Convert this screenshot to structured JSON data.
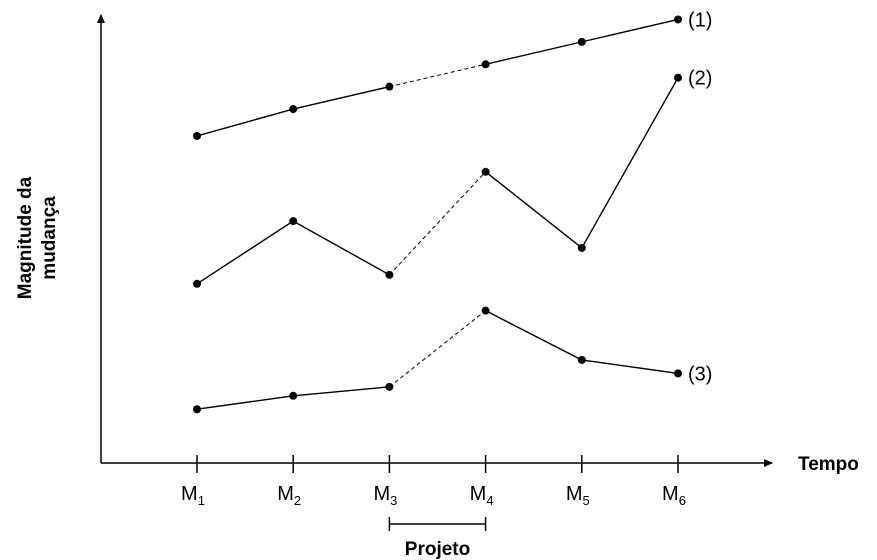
{
  "chart_data": {
    "type": "line",
    "xlabel": "Tempo",
    "ylabel_lines": [
      "Magnitude da",
      "mudança"
    ],
    "x_categories": [
      {
        "main": "M",
        "sub": "1"
      },
      {
        "main": "M",
        "sub": "2"
      },
      {
        "main": "M",
        "sub": "3"
      },
      {
        "main": "M",
        "sub": "4"
      },
      {
        "main": "M",
        "sub": "5"
      },
      {
        "main": "M",
        "sub": "6"
      }
    ],
    "ylim": [
      0,
      100
    ],
    "grid": false,
    "bracket": {
      "label": "Projeto",
      "from_index": 2,
      "to_index": 3
    },
    "dashed_segment": {
      "from_index": 2,
      "to_index": 3
    },
    "series": [
      {
        "name": "(1)",
        "values": [
          73,
          79,
          84,
          89,
          94,
          99
        ]
      },
      {
        "name": "(2)",
        "values": [
          40,
          54,
          42,
          65,
          48,
          86
        ]
      },
      {
        "name": "(3)",
        "values": [
          12,
          15,
          17,
          34,
          23,
          20
        ]
      }
    ]
  }
}
